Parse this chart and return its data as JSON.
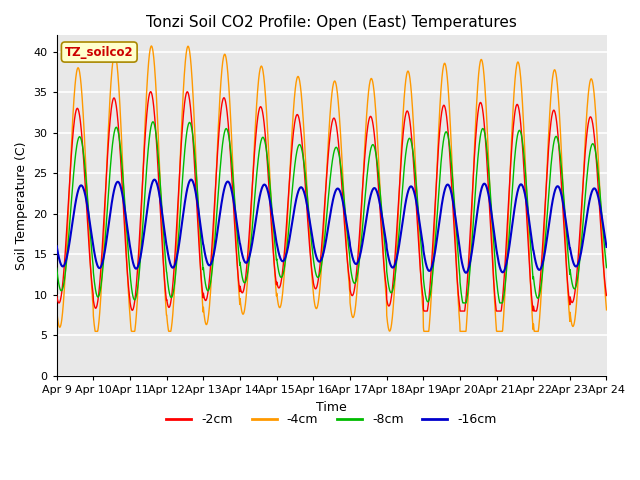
{
  "title": "Tonzi Soil CO2 Profile: Open (East) Temperatures",
  "xlabel": "Time",
  "ylabel": "Soil Temperature (C)",
  "bg_color": "#e8e8e8",
  "grid_color": "#ffffff",
  "lines": {
    "-2cm": {
      "color": "#ff0000",
      "lw": 1.0
    },
    "-4cm": {
      "color": "#ff9900",
      "lw": 1.0
    },
    "-8cm": {
      "color": "#00bb00",
      "lw": 1.0
    },
    "-16cm": {
      "color": "#0000cc",
      "lw": 1.5
    }
  },
  "xtick_labels": [
    "Apr 9",
    "Apr 10",
    "Apr 11",
    "Apr 12",
    "Apr 13",
    "Apr 14",
    "Apr 15",
    "Apr 16",
    "Apr 17",
    "Apr 18",
    "Apr 19",
    "Apr 20",
    "Apr 21",
    "Apr 22",
    "Apr 23",
    "Apr 24"
  ],
  "sensor_label": "TZ_soilco2",
  "sensor_label_bg": "#ffffcc",
  "sensor_label_color": "#cc0000"
}
